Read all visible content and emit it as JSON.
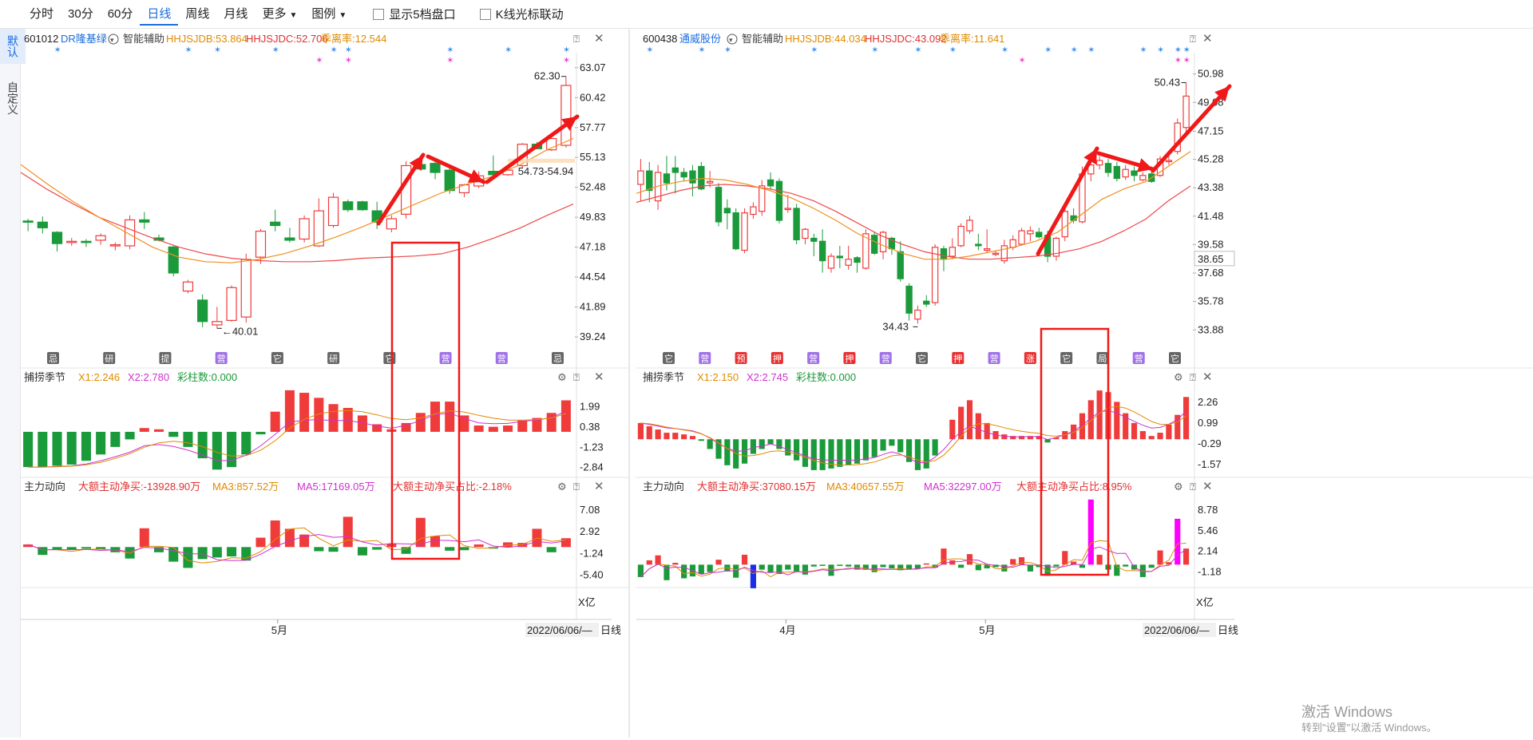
{
  "toolbar": {
    "periods": [
      "分时",
      "30分",
      "60分",
      "日线",
      "周线",
      "月线"
    ],
    "active_period": "日线",
    "more": "更多",
    "legend": "图例",
    "show5": "显示5档盘口",
    "kline_link": "K线光标联动"
  },
  "sidebar": {
    "tabs": [
      "默认",
      "自定义"
    ]
  },
  "watermark": {
    "line1": "激活 Windows",
    "line2": "转到\"设置\"以激活 Windows。"
  },
  "charts": [
    {
      "code": "601012",
      "name": "DR隆基绿",
      "assist": "智能辅助",
      "ind1_label": "HHJSJDB:53.864",
      "ind2_label": "HHJSJDC:52.706",
      "ind3_label": "乖离率:12.544",
      "price_ticks": [
        63.07,
        60.42,
        57.77,
        55.13,
        52.48,
        49.83,
        47.18,
        44.54,
        41.89,
        39.24
      ],
      "price_range": [
        37.9,
        64.4
      ],
      "candles": [
        [
          49.5,
          49.7,
          48.6,
          49.4
        ],
        [
          49.4,
          49.9,
          48.4,
          48.9
        ],
        [
          48.5,
          48.6,
          46.8,
          47.5
        ],
        [
          47.6,
          48.0,
          47.3,
          47.7
        ],
        [
          47.7,
          47.9,
          47.2,
          47.6
        ],
        [
          47.8,
          48.4,
          47.4,
          48.2
        ],
        [
          47.3,
          47.6,
          46.9,
          47.4
        ],
        [
          47.3,
          50.0,
          47.0,
          49.6
        ],
        [
          49.6,
          50.3,
          48.8,
          49.4
        ],
        [
          48.0,
          48.3,
          47.7,
          47.8
        ],
        [
          47.2,
          47.3,
          44.6,
          44.9
        ],
        [
          43.3,
          44.3,
          43.1,
          44.1
        ],
        [
          42.5,
          43.0,
          40.1,
          40.6
        ],
        [
          40.3,
          41.9,
          40.0,
          40.6
        ],
        [
          40.7,
          43.8,
          40.6,
          43.6
        ],
        [
          41.0,
          46.6,
          40.5,
          46.1
        ],
        [
          46.3,
          48.8,
          45.7,
          48.6
        ],
        [
          49.4,
          50.5,
          48.6,
          49.1
        ],
        [
          48.0,
          48.9,
          47.6,
          47.8
        ],
        [
          47.9,
          50.0,
          47.6,
          49.7
        ],
        [
          47.3,
          51.5,
          47.2,
          50.4
        ],
        [
          49.1,
          52.0,
          48.9,
          51.6
        ],
        [
          51.2,
          51.4,
          50.3,
          50.5
        ],
        [
          51.2,
          51.3,
          50.4,
          50.5
        ],
        [
          50.4,
          51.2,
          48.8,
          49.4
        ],
        [
          48.8,
          50.0,
          48.5,
          49.7
        ],
        [
          50.1,
          54.8,
          49.7,
          54.4
        ],
        [
          54.5,
          55.3,
          54.0,
          54.1
        ],
        [
          54.6,
          55.1,
          53.2,
          53.8
        ],
        [
          54.0,
          54.3,
          51.9,
          52.2
        ],
        [
          52.0,
          52.8,
          51.6,
          52.7
        ],
        [
          52.6,
          53.9,
          52.4,
          53.5
        ],
        [
          53.9,
          55.3,
          53.5,
          53.6
        ],
        [
          53.6,
          54.2,
          53.5,
          54.0
        ],
        [
          54.4,
          56.4,
          54.2,
          56.3
        ],
        [
          56.3,
          56.5,
          55.9,
          55.9
        ],
        [
          55.8,
          57.0,
          55.7,
          56.8
        ],
        [
          56.2,
          62.3,
          56.0,
          61.5
        ]
      ],
      "ma": {
        "red": [
          53.8,
          52.3,
          51.0,
          49.8,
          48.9,
          48.0,
          47.2,
          46.6,
          46.2,
          46.0,
          45.9,
          45.9,
          46.0,
          46.2,
          46.3,
          46.4,
          46.6,
          47.2,
          48.0,
          48.9,
          50.0,
          51.0
        ],
        "orange": [
          54.5,
          52.8,
          51.2,
          49.8,
          48.5,
          47.2,
          46.3,
          45.9,
          45.8,
          46.1,
          46.6,
          47.3,
          48.1,
          49.0,
          50.0,
          51.0,
          52.0,
          52.8,
          53.5,
          54.5,
          55.8,
          56.8
        ]
      },
      "anno_high": "62.30",
      "anno_low": "40.01",
      "anno_range": "54.73-54.94",
      "sub1": {
        "name": "捕捞季节",
        "x1": "X1:2.246",
        "x2": "X2:2.780",
        "cz": "彩柱数:0.000",
        "ticks": [
          1.99,
          0.38,
          -1.23,
          -2.84
        ],
        "range": [
          -3.3,
          3.8
        ]
      },
      "sub2": {
        "name": "主力动向",
        "l1": "大额主动净买:-13928.90万",
        "l2": "MA3:857.52万",
        "l3": "MA5:17169.05万",
        "l4": "大额主动净买占比:-2.18%",
        "ticks": [
          7.08,
          2.92,
          -1.24,
          -5.4
        ],
        "range": [
          -7.3,
          10.3
        ],
        "unit": "X亿"
      },
      "x_labels": [
        "5月"
      ],
      "date": "2022/06/06/—",
      "period_label": "日线",
      "mini_icons": [
        "忌",
        "研",
        "提",
        "营",
        "它",
        "研",
        "它",
        "营",
        "营",
        "忌"
      ]
    },
    {
      "code": "600438",
      "name": "通威股份",
      "assist": "智能辅助",
      "ind1_label": "HHJSJDB:44.034",
      "ind2_label": "HHJSJDC:43.092",
      "ind3_label": "乖离率:11.641",
      "price_ticks": [
        50.98,
        49.08,
        47.15,
        45.28,
        43.38,
        41.48,
        39.58,
        37.68,
        35.78,
        33.88
      ],
      "price_range": [
        32.4,
        52.4
      ],
      "current_price": "38.65",
      "candles": [
        [
          43.6,
          45.3,
          42.5,
          44.5
        ],
        [
          44.5,
          45.1,
          42.4,
          43.2
        ],
        [
          42.5,
          44.9,
          41.9,
          44.4
        ],
        [
          44.3,
          45.5,
          43.2,
          43.7
        ],
        [
          44.7,
          45.5,
          43.0,
          44.4
        ],
        [
          44.4,
          44.7,
          43.8,
          44.1
        ],
        [
          44.5,
          44.9,
          42.8,
          43.7
        ],
        [
          44.8,
          45.1,
          43.2,
          43.3
        ],
        [
          43.7,
          44.5,
          43.4,
          43.8
        ],
        [
          43.4,
          43.7,
          40.8,
          41.1
        ],
        [
          42.0,
          42.6,
          40.6,
          41.7
        ],
        [
          41.7,
          42.0,
          39.2,
          39.3
        ],
        [
          39.2,
          42.0,
          39.0,
          41.7
        ],
        [
          41.6,
          42.4,
          41.3,
          42.1
        ],
        [
          41.8,
          43.9,
          41.5,
          43.5
        ],
        [
          43.9,
          44.4,
          43.3,
          43.5
        ],
        [
          43.8,
          44.0,
          41.0,
          41.2
        ],
        [
          42.0,
          42.9,
          41.7,
          42.0
        ],
        [
          42.0,
          42.3,
          39.6,
          39.9
        ],
        [
          40.0,
          40.7,
          39.6,
          40.6
        ],
        [
          40.0,
          40.3,
          38.8,
          39.8
        ],
        [
          39.8,
          40.6,
          37.7,
          38.5
        ],
        [
          38.0,
          39.0,
          37.7,
          38.8
        ],
        [
          38.8,
          39.5,
          38.0,
          38.7
        ],
        [
          38.2,
          39.5,
          37.9,
          38.6
        ],
        [
          38.7,
          38.8,
          37.7,
          38.4
        ],
        [
          38.0,
          40.6,
          37.9,
          40.3
        ],
        [
          40.2,
          40.4,
          38.9,
          39.0
        ],
        [
          39.1,
          40.5,
          38.6,
          40.4
        ],
        [
          40.0,
          40.1,
          38.9,
          39.3
        ],
        [
          39.1,
          39.8,
          37.1,
          37.3
        ],
        [
          36.8,
          37.0,
          34.5,
          35.0
        ],
        [
          34.6,
          35.5,
          34.3,
          35.2
        ],
        [
          35.8,
          36.2,
          35.4,
          35.6
        ],
        [
          35.7,
          39.6,
          35.5,
          39.4
        ],
        [
          39.3,
          39.5,
          37.8,
          38.6
        ],
        [
          38.8,
          40.0,
          38.6,
          39.4
        ],
        [
          39.5,
          41.0,
          39.4,
          40.8
        ],
        [
          40.5,
          41.5,
          40.3,
          41.2
        ],
        [
          39.6,
          40.3,
          39.2,
          39.5
        ],
        [
          39.2,
          40.6,
          39.0,
          39.3
        ],
        [
          39.0,
          39.2,
          38.8,
          39.0
        ],
        [
          38.5,
          39.9,
          38.3,
          39.5
        ],
        [
          39.4,
          40.2,
          39.2,
          39.9
        ],
        [
          39.6,
          40.7,
          39.5,
          40.5
        ],
        [
          40.3,
          40.8,
          39.8,
          40.5
        ],
        [
          40.4,
          40.7,
          40.0,
          40.1
        ],
        [
          40.2,
          40.5,
          38.4,
          38.8
        ],
        [
          38.8,
          40.1,
          38.5,
          40.0
        ],
        [
          40.1,
          42.1,
          39.8,
          41.8
        ],
        [
          41.5,
          42.0,
          41.0,
          41.2
        ],
        [
          41.1,
          44.8,
          41.0,
          44.3
        ],
        [
          44.3,
          45.1,
          43.8,
          44.9
        ],
        [
          44.9,
          45.5,
          44.6,
          45.2
        ],
        [
          45.0,
          45.3,
          44.1,
          44.4
        ],
        [
          44.8,
          45.1,
          43.8,
          44.0
        ],
        [
          44.1,
          44.9,
          43.9,
          44.6
        ],
        [
          44.5,
          44.8,
          43.8,
          44.2
        ],
        [
          43.9,
          44.4,
          43.8,
          44.2
        ],
        [
          44.3,
          44.8,
          43.7,
          43.8
        ],
        [
          44.2,
          45.5,
          44.1,
          45.3
        ],
        [
          45.2,
          45.6,
          44.9,
          45.2
        ],
        [
          45.8,
          48.0,
          45.6,
          47.7
        ],
        [
          47.4,
          50.4,
          47.1,
          49.5
        ]
      ],
      "ma": {
        "red": [
          42.4,
          42.8,
          43.2,
          43.5,
          43.6,
          43.5,
          43.3,
          43.0,
          42.5,
          41.8,
          41.0,
          40.2,
          39.6,
          39.1,
          38.8,
          38.6,
          38.6,
          38.7,
          38.8,
          39.0,
          39.3,
          39.8,
          40.5,
          41.3,
          42.5,
          43.5
        ],
        "orange": [
          43.0,
          43.5,
          43.8,
          44.0,
          43.9,
          43.6,
          43.2,
          42.7,
          42.0,
          41.2,
          40.3,
          39.6,
          39.0,
          38.6,
          38.6,
          38.8,
          39.1,
          39.4,
          39.8,
          40.4,
          41.5,
          42.6,
          43.3,
          43.8,
          44.8,
          45.8
        ]
      },
      "anno_high": "50.43",
      "anno_low": "34.43",
      "sub1": {
        "name": "捕捞季节",
        "x1": "X1:2.150",
        "x2": "X2:2.745",
        "cz": "彩柱数:0.000",
        "ticks": [
          2.26,
          0.99,
          -0.29,
          -1.57
        ],
        "range": [
          -2.1,
          3.4
        ]
      },
      "sub2": {
        "name": "主力动向",
        "l1": "大额主动净买:37080.15万",
        "l2": "MA3:40657.55万",
        "l3": "MA5:32297.00万",
        "l4": "大额主动净买占比:8.95%",
        "ticks": [
          8.78,
          5.46,
          2.14,
          -1.18
        ],
        "range": [
          -3.3,
          11.5
        ],
        "unit": "X亿"
      },
      "x_labels": [
        "4月",
        "5月"
      ],
      "date": "2022/06/06/—",
      "period_label": "日线",
      "mini_icons": [
        "它",
        "营",
        "预",
        "押",
        "营",
        "押",
        "营",
        "它",
        "押",
        "营",
        "涨",
        "它",
        "局",
        "营",
        "它"
      ]
    }
  ]
}
